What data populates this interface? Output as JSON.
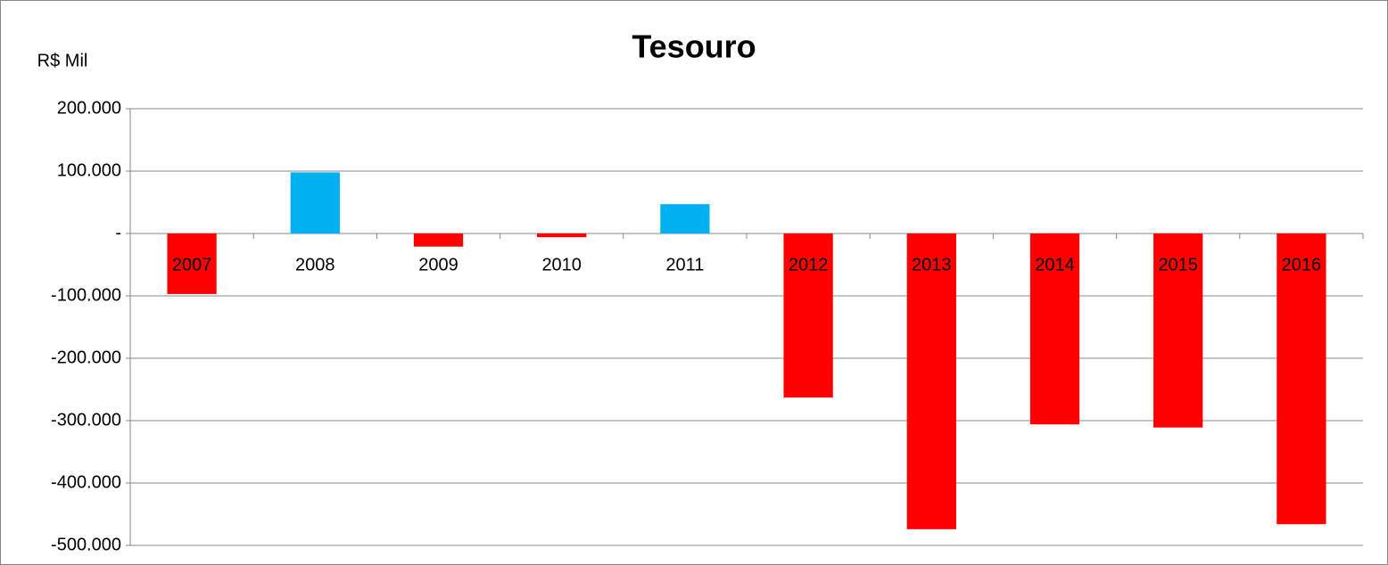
{
  "chart_data": {
    "type": "bar",
    "title": "Tesouro",
    "y_axis_label": "R$ Mil",
    "categories": [
      "2007",
      "2008",
      "2009",
      "2010",
      "2011",
      "2012",
      "2013",
      "2014",
      "2015",
      "2016"
    ],
    "values": [
      -97000,
      98000,
      -21000,
      -6000,
      47000,
      -263000,
      -474000,
      -306000,
      -311000,
      -466000
    ],
    "colors": [
      "#ff0000",
      "#00b0f0",
      "#ff0000",
      "#ff0000",
      "#00b0f0",
      "#ff0000",
      "#ff0000",
      "#ff0000",
      "#ff0000",
      "#ff0000"
    ],
    "ylim": [
      -500000,
      200000
    ],
    "yticks": [
      {
        "value": 200000,
        "label": "200.000"
      },
      {
        "value": 100000,
        "label": "100.000"
      },
      {
        "value": 0,
        "label": "-"
      },
      {
        "value": -100000,
        "label": "-100.000"
      },
      {
        "value": -200000,
        "label": "-200.000"
      },
      {
        "value": -300000,
        "label": "-300.000"
      },
      {
        "value": -400000,
        "label": "-400.000"
      },
      {
        "value": -500000,
        "label": "-500.000"
      }
    ],
    "grid": true
  }
}
